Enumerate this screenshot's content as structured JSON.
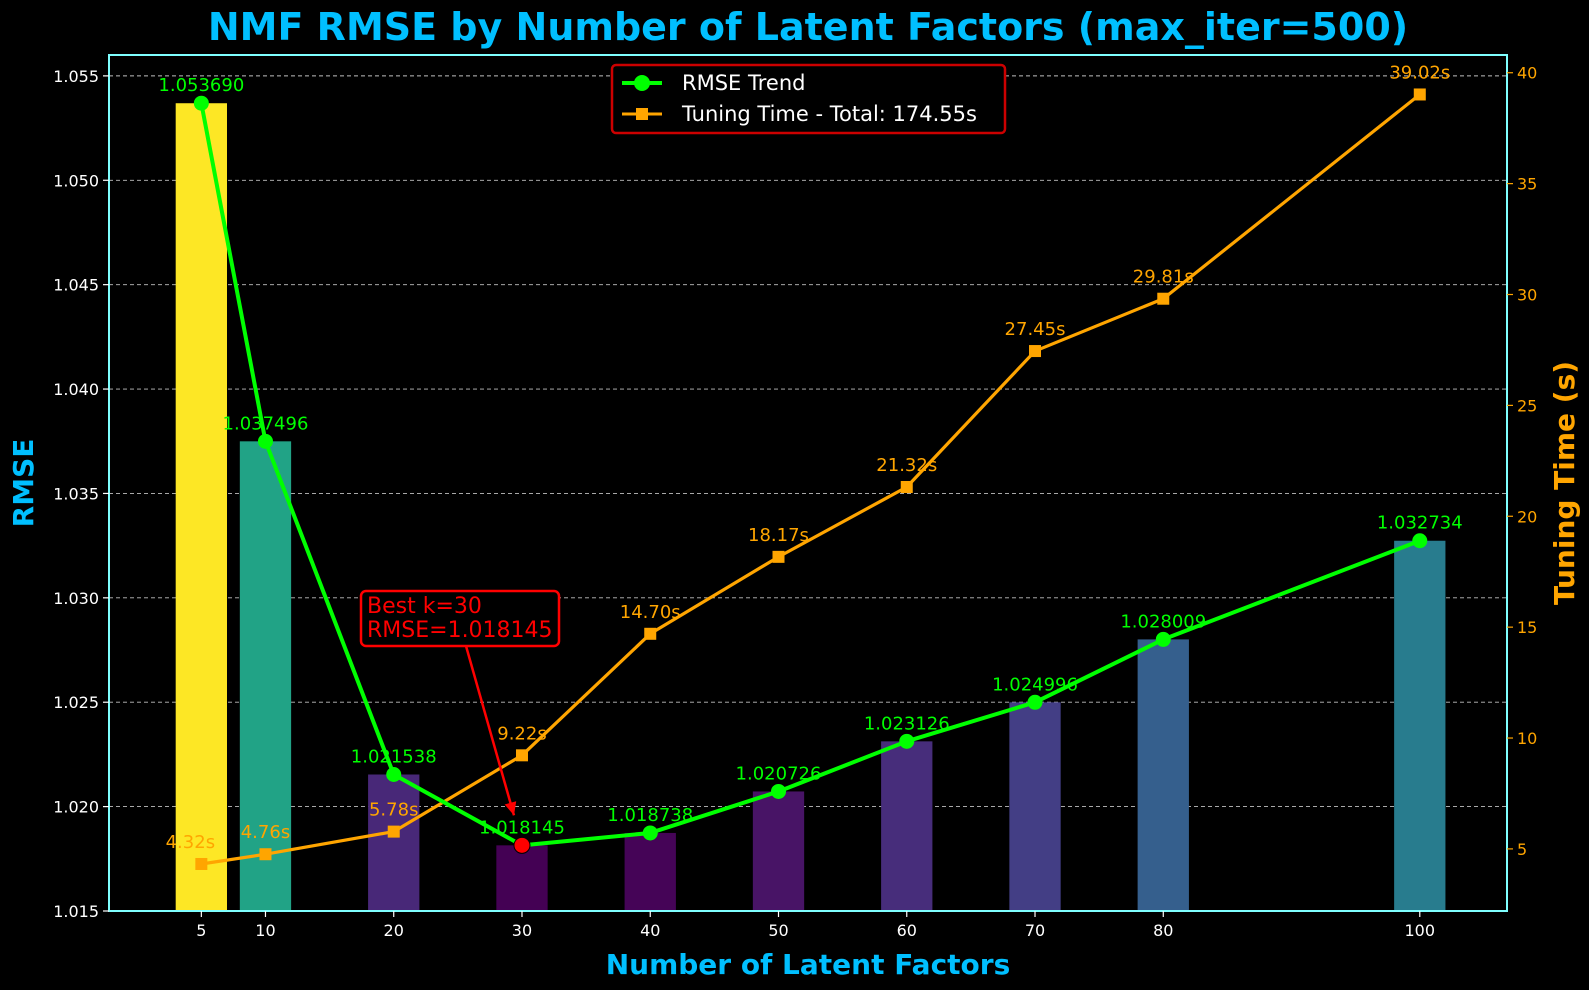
{
  "chart_data": {
    "type": "bar",
    "title": "NMF RMSE by Number of Latent Factors (max_iter=500)",
    "xlabel": "Number of Latent Factors",
    "ylabel": "RMSE",
    "y2label": "Tuning Time (s)",
    "x": [
      5,
      10,
      20,
      30,
      40,
      50,
      60,
      70,
      80,
      100
    ],
    "xticks": [
      "5",
      "10",
      "20",
      "30",
      "40",
      "50",
      "60",
      "70",
      "80",
      "100"
    ],
    "xlim": [
      -2.2,
      106.8
    ],
    "ylim": [
      1.015,
      1.056
    ],
    "yticks": [
      "1.015",
      "1.020",
      "1.025",
      "1.030",
      "1.035",
      "1.040",
      "1.045",
      "1.050",
      "1.055"
    ],
    "ylim2": [
      2.2,
      40.8
    ],
    "yticks2": [
      "5",
      "10",
      "15",
      "20",
      "25",
      "30",
      "35",
      "40"
    ],
    "grid": true,
    "legend_position": "top-center",
    "series": [
      {
        "name": "RMSE Trend",
        "kind": "bar+line",
        "axis": "left",
        "values": [
          1.05369,
          1.037496,
          1.021538,
          1.018145,
          1.018738,
          1.020726,
          1.023126,
          1.024996,
          1.028009,
          1.032734
        ],
        "labels": [
          "1.053690",
          "1.037496",
          "1.021538",
          "1.018145",
          "1.018738",
          "1.020726",
          "1.023126",
          "1.024996",
          "1.028009",
          "1.032734"
        ],
        "color": "#00ff00"
      },
      {
        "name": "Tuning Time - Total: 174.55s",
        "kind": "line",
        "axis": "right",
        "values": [
          4.32,
          4.76,
          5.78,
          9.22,
          14.7,
          18.17,
          21.32,
          27.45,
          29.81,
          39.02
        ],
        "labels": [
          "4.32s",
          "4.76s",
          "5.78s",
          "9.22s",
          "14.70s",
          "18.17s",
          "21.32s",
          "27.45s",
          "29.81s",
          "39.02s"
        ],
        "color": "#ffa500"
      }
    ],
    "bar_colors": [
      "#fde725",
      "#21a386",
      "#482878",
      "#440154",
      "#450457",
      "#481466",
      "#472d7b",
      "#433e85",
      "#355f8d",
      "#287c8e"
    ],
    "annotation": {
      "lines": [
        "Best k=30",
        "RMSE=1.018145"
      ],
      "target_x": 30,
      "color": "#ff0000"
    },
    "colors": {
      "background": "#000000",
      "title": "#00bfff",
      "frame": "#7fffff",
      "grid": "#ffffff",
      "left_ticks": "#ffffff",
      "right_ticks": "#ffa500",
      "best_point": "#ff0000"
    }
  }
}
